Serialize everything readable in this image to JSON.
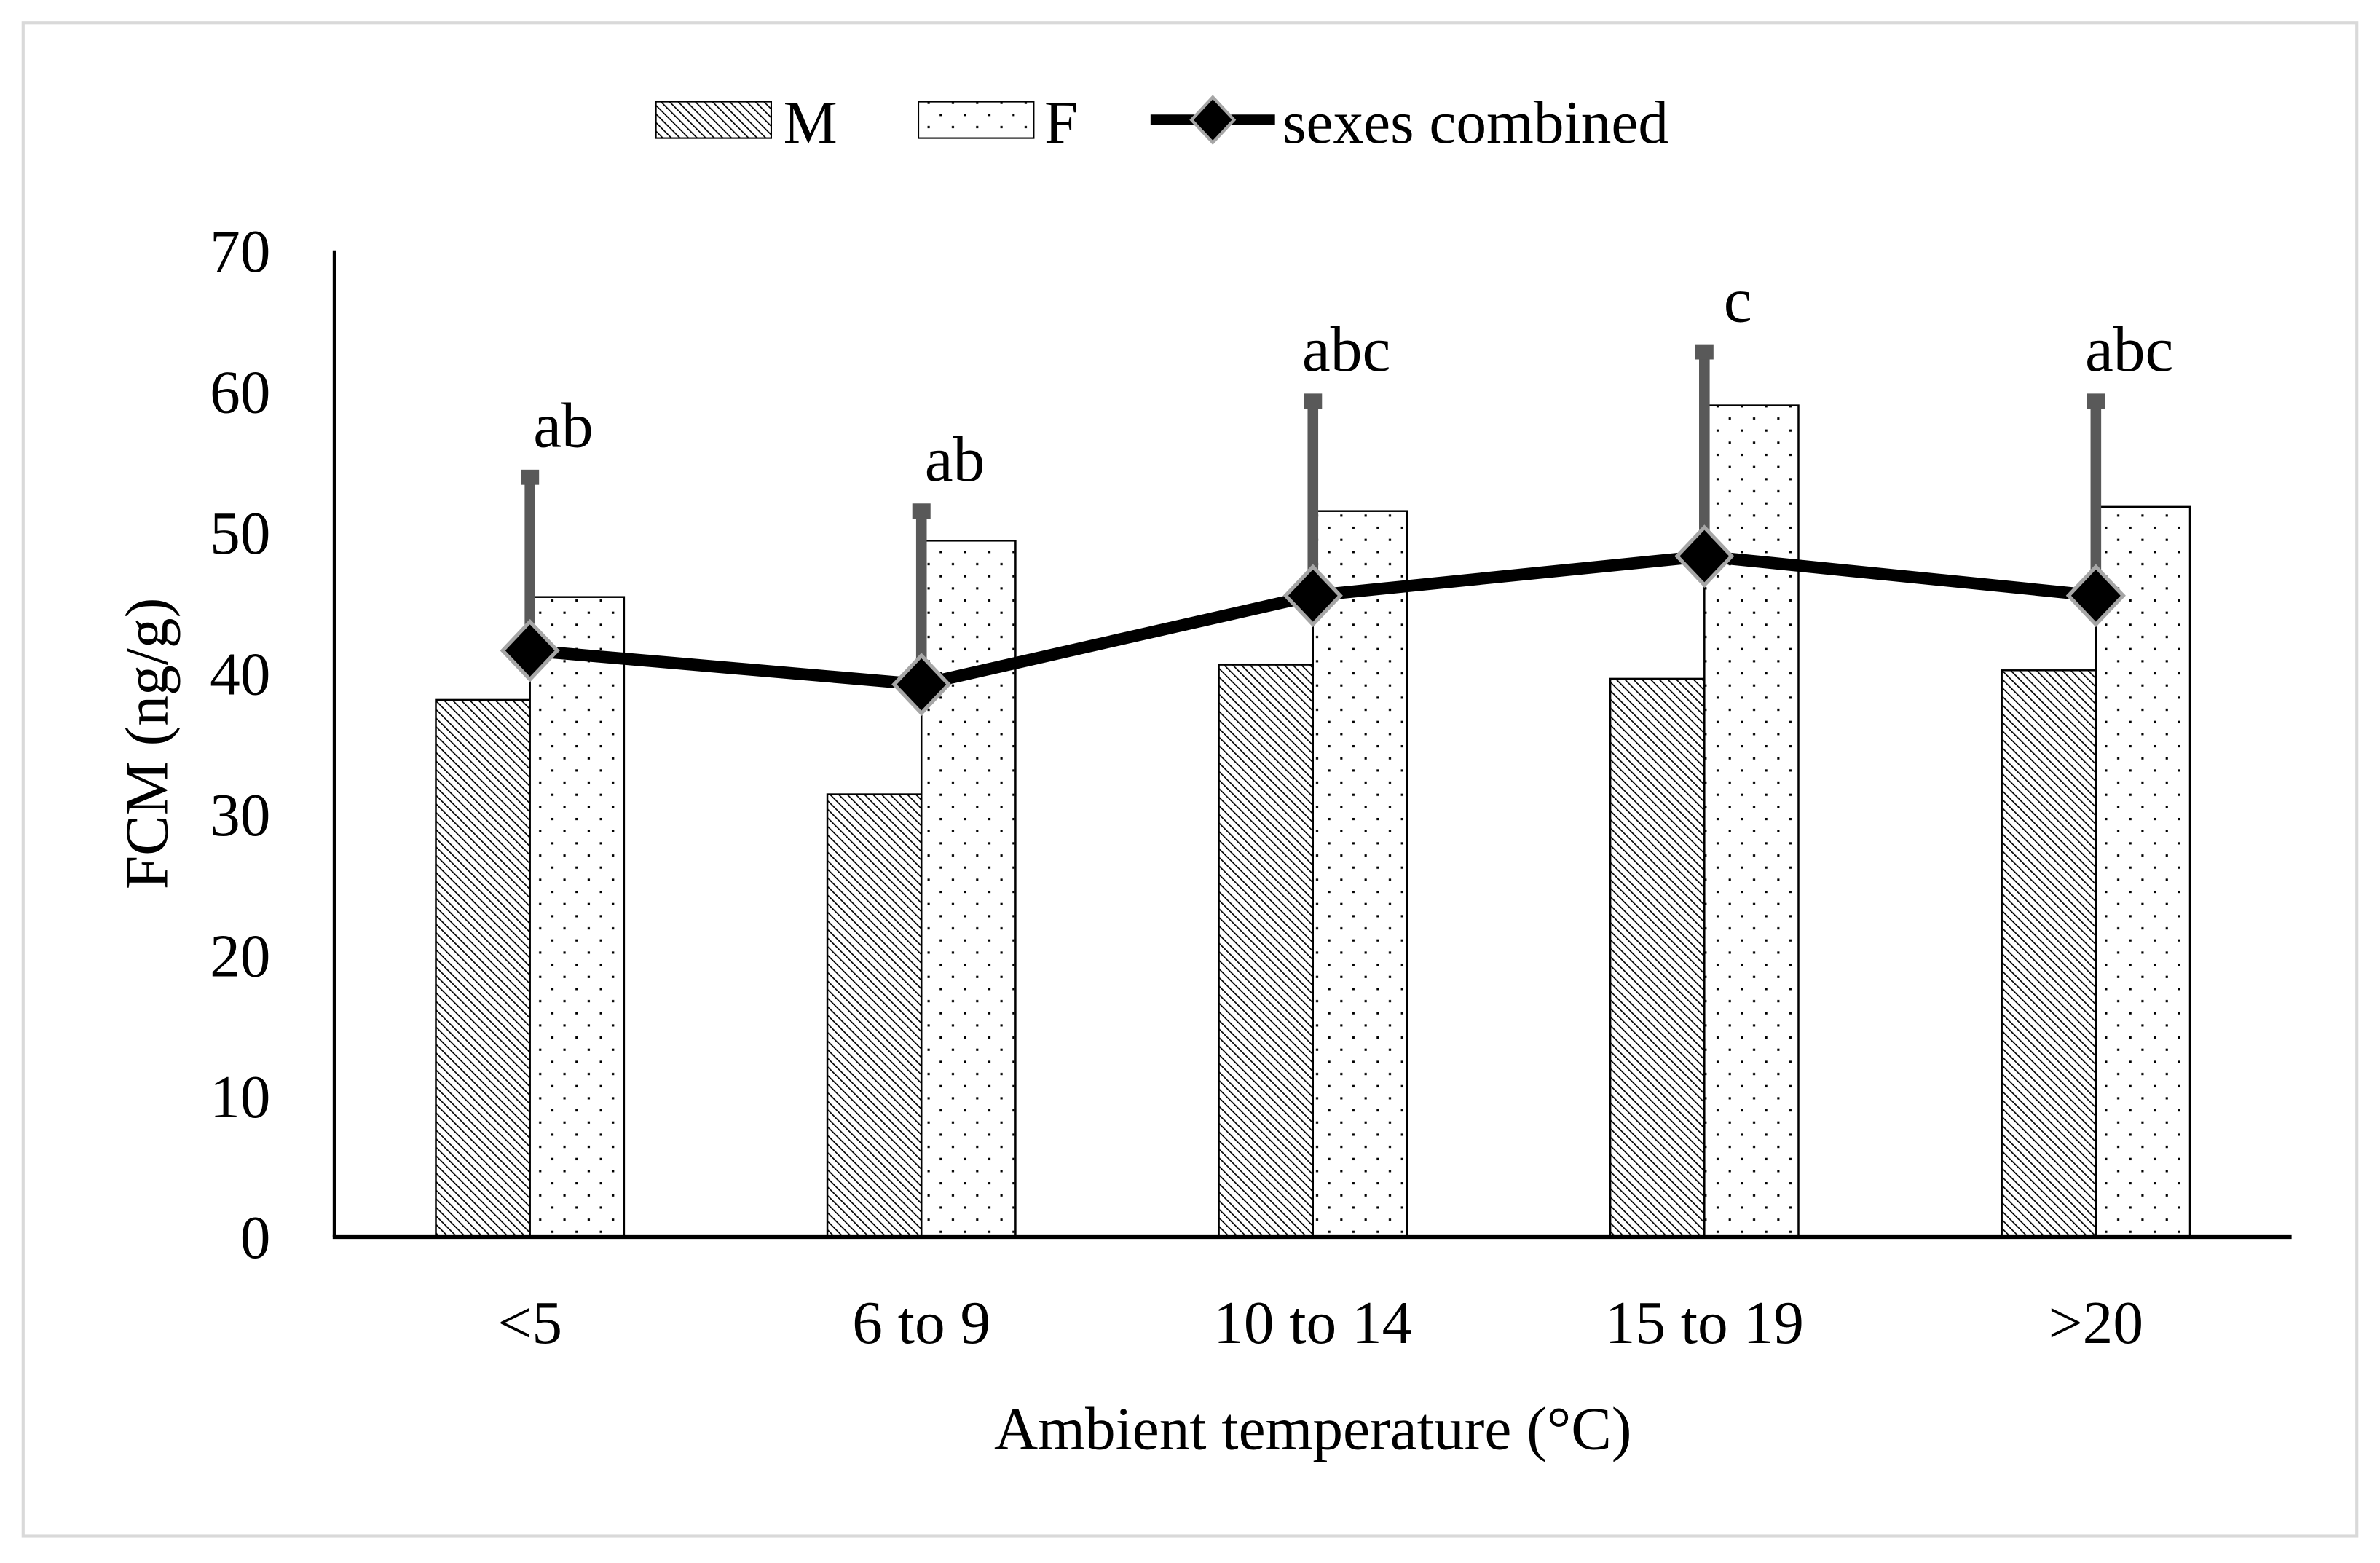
{
  "chart_data": {
    "type": "bar",
    "title": "",
    "xlabel": "Ambient temperature (°C)",
    "ylabel": "FCM (ng/g)",
    "ylim": [
      0,
      70
    ],
    "yticks": [
      "0",
      "10",
      "20",
      "30",
      "40",
      "50",
      "60",
      "70"
    ],
    "categories": [
      "<5",
      "6 to 9",
      "10 to 14",
      "15 to 19",
      ">20"
    ],
    "series": [
      {
        "name": "M",
        "type": "bar",
        "pattern": "diagonal-hatch",
        "values": [
          38.1,
          31.4,
          40.6,
          39.6,
          40.2
        ]
      },
      {
        "name": "F",
        "type": "bar",
        "pattern": "dots",
        "values": [
          45.4,
          49.4,
          51.5,
          59.0,
          51.8
        ]
      },
      {
        "name": "sexes combined",
        "type": "line",
        "marker": "diamond",
        "values": [
          41.6,
          39.2,
          45.5,
          48.3,
          45.5
        ],
        "error_upper": [
          53.9,
          51.5,
          59.3,
          62.8,
          59.3
        ]
      }
    ],
    "significance_labels": [
      "ab",
      "ab",
      "abc",
      "c",
      "abc"
    ],
    "legend": {
      "placement": "top",
      "entries": [
        "M",
        "F",
        "sexes combined"
      ]
    },
    "grid": false,
    "colors": {
      "line": "#000000",
      "error_bar": "#595959",
      "marker_edge": "#a6a6a6"
    }
  }
}
